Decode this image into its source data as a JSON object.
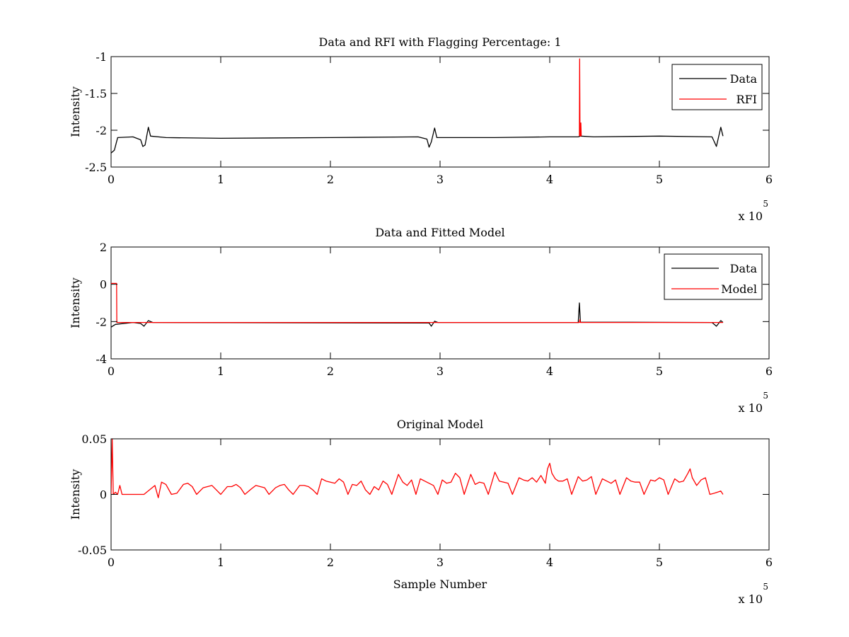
{
  "colors": {
    "data": "#000000",
    "rfi": "#ff0000",
    "background": "#ffffff"
  },
  "chart_data": [
    {
      "type": "line",
      "title": "Data and RFI with Flagging Percentage: 1",
      "xlabel": "",
      "ylabel": "Intensity",
      "xlim": [
        0,
        600000
      ],
      "ylim": [
        -2.5,
        -1
      ],
      "xticks": [
        0,
        1,
        2,
        3,
        4,
        5,
        6
      ],
      "yticks": [
        "-1",
        "-1.5",
        "-2",
        "-2.5"
      ],
      "x_exponent_label": "x 10",
      "x_exponent": "5",
      "legend": {
        "position": "top-right",
        "entries": [
          "Data",
          "RFI"
        ]
      },
      "series": [
        {
          "name": "Data",
          "color": "#000000",
          "points": [
            [
              0,
              -2.31
            ],
            [
              3000,
              -2.27
            ],
            [
              6000,
              -2.1
            ],
            [
              20000,
              -2.09
            ],
            [
              27000,
              -2.13
            ],
            [
              29000,
              -2.22
            ],
            [
              31000,
              -2.2
            ],
            [
              34000,
              -1.96
            ],
            [
              36000,
              -2.08
            ],
            [
              50000,
              -2.1
            ],
            [
              100000,
              -2.11
            ],
            [
              200000,
              -2.1
            ],
            [
              280000,
              -2.09
            ],
            [
              288000,
              -2.12
            ],
            [
              290000,
              -2.23
            ],
            [
              292000,
              -2.16
            ],
            [
              295000,
              -1.97
            ],
            [
              297000,
              -2.1
            ],
            [
              350000,
              -2.1
            ],
            [
              400000,
              -2.09
            ],
            [
              426000,
              -2.09
            ],
            [
              428000,
              -2.08
            ],
            [
              440000,
              -2.09
            ],
            [
              500000,
              -2.08
            ],
            [
              548000,
              -2.09
            ],
            [
              552000,
              -2.22
            ],
            [
              556000,
              -1.96
            ],
            [
              558000,
              -2.08
            ]
          ]
        },
        {
          "name": "RFI",
          "color": "#ff0000",
          "points": [
            [
              427000,
              -2.08
            ],
            [
              427300,
              -1.03
            ],
            [
              427600,
              -2.0
            ],
            [
              428000,
              -2.08
            ],
            [
              428400,
              -1.9
            ],
            [
              428800,
              -2.08
            ]
          ]
        }
      ]
    },
    {
      "type": "line",
      "title": "Data and Fitted Model",
      "xlabel": "",
      "ylabel": "Intensity",
      "xlim": [
        0,
        600000
      ],
      "ylim": [
        -4,
        2
      ],
      "xticks": [
        0,
        1,
        2,
        3,
        4,
        5,
        6
      ],
      "yticks": [
        "2",
        "0",
        "-2",
        "-4"
      ],
      "x_exponent_label": "x 10",
      "x_exponent": "5",
      "legend": {
        "position": "top-right",
        "entries": [
          "Data",
          "Model"
        ]
      },
      "series": [
        {
          "name": "Data",
          "color": "#000000",
          "points": [
            [
              0,
              -2.3
            ],
            [
              4000,
              -2.15
            ],
            [
              20000,
              -2.05
            ],
            [
              27000,
              -2.1
            ],
            [
              30000,
              -2.25
            ],
            [
              34000,
              -1.95
            ],
            [
              38000,
              -2.05
            ],
            [
              290000,
              -2.08
            ],
            [
              292000,
              -2.25
            ],
            [
              295000,
              -1.98
            ],
            [
              298000,
              -2.05
            ],
            [
              426000,
              -2.05
            ],
            [
              427000,
              -1.0
            ],
            [
              428000,
              -2.03
            ],
            [
              548000,
              -2.05
            ],
            [
              552000,
              -2.25
            ],
            [
              556000,
              -1.95
            ],
            [
              558000,
              -2.05
            ]
          ]
        },
        {
          "name": "Model",
          "color": "#ff0000",
          "points": [
            [
              0,
              0.05
            ],
            [
              5000,
              0.05
            ],
            [
              5200,
              -2.05
            ],
            [
              100000,
              -2.05
            ],
            [
              200000,
              -2.05
            ],
            [
              300000,
              -2.05
            ],
            [
              427000,
              -2.05
            ],
            [
              427500,
              -1.9
            ],
            [
              428000,
              -2.05
            ],
            [
              500000,
              -2.05
            ],
            [
              558000,
              -2.05
            ]
          ]
        }
      ]
    },
    {
      "type": "line",
      "title": "Original Model",
      "xlabel": "Sample Number",
      "ylabel": "Intensity",
      "xlim": [
        0,
        600000
      ],
      "ylim": [
        -0.05,
        0.05
      ],
      "xticks": [
        0,
        1,
        2,
        3,
        4,
        5,
        6
      ],
      "yticks": [
        "0.05",
        "0",
        "-0.05"
      ],
      "x_exponent_label": "x 10",
      "x_exponent": "5",
      "series": [
        {
          "name": "",
          "color": "#ff0000",
          "points": [
            [
              0,
              0
            ],
            [
              1000,
              0.05
            ],
            [
              2000,
              0
            ],
            [
              4000,
              0.002
            ],
            [
              6000,
              0
            ],
            [
              8000,
              0.008
            ],
            [
              10000,
              0
            ],
            [
              30000,
              0
            ],
            [
              40000,
              0.008
            ],
            [
              43000,
              -0.003
            ],
            [
              46000,
              0.011
            ],
            [
              50000,
              0.009
            ],
            [
              55000,
              0
            ],
            [
              60000,
              0.001
            ],
            [
              66000,
              0.009
            ],
            [
              70000,
              0.01
            ],
            [
              74000,
              0.007
            ],
            [
              78000,
              0
            ],
            [
              84000,
              0.006
            ],
            [
              88000,
              0.007
            ],
            [
              92000,
              0.008
            ],
            [
              96000,
              0.004
            ],
            [
              100000,
              0
            ],
            [
              106000,
              0.007
            ],
            [
              110000,
              0.007
            ],
            [
              114000,
              0.009
            ],
            [
              118000,
              0.006
            ],
            [
              122000,
              0
            ],
            [
              128000,
              0.005
            ],
            [
              132000,
              0.008
            ],
            [
              136000,
              0.007
            ],
            [
              140000,
              0.006
            ],
            [
              144000,
              0
            ],
            [
              150000,
              0.006
            ],
            [
              154000,
              0.008
            ],
            [
              158000,
              0.009
            ],
            [
              162000,
              0.004
            ],
            [
              166000,
              0
            ],
            [
              172000,
              0.008
            ],
            [
              176000,
              0.008
            ],
            [
              180000,
              0.007
            ],
            [
              184000,
              0.004
            ],
            [
              188000,
              0
            ],
            [
              192000,
              0.014
            ],
            [
              196000,
              0.012
            ],
            [
              200000,
              0.011
            ],
            [
              204000,
              0.01
            ],
            [
              208000,
              0.014
            ],
            [
              212000,
              0.011
            ],
            [
              216000,
              0
            ],
            [
              220000,
              0.009
            ],
            [
              224000,
              0.008
            ],
            [
              228000,
              0.012
            ],
            [
              232000,
              0.004
            ],
            [
              236000,
              0
            ],
            [
              240000,
              0.007
            ],
            [
              244000,
              0.004
            ],
            [
              248000,
              0.012
            ],
            [
              252000,
              0.009
            ],
            [
              256000,
              0
            ],
            [
              262000,
              0.018
            ],
            [
              266000,
              0.011
            ],
            [
              270000,
              0.008
            ],
            [
              274000,
              0.013
            ],
            [
              278000,
              0
            ],
            [
              282000,
              0.014
            ],
            [
              286000,
              0.012
            ],
            [
              290000,
              0.01
            ],
            [
              294000,
              0.008
            ],
            [
              298000,
              0
            ],
            [
              302000,
              0.013
            ],
            [
              306000,
              0.01
            ],
            [
              310000,
              0.011
            ],
            [
              314000,
              0.019
            ],
            [
              318000,
              0.015
            ],
            [
              322000,
              0
            ],
            [
              328000,
              0.018
            ],
            [
              332000,
              0.009
            ],
            [
              336000,
              0.011
            ],
            [
              340000,
              0.01
            ],
            [
              344000,
              0
            ],
            [
              350000,
              0.02
            ],
            [
              354000,
              0.012
            ],
            [
              358000,
              0.011
            ],
            [
              362000,
              0.01
            ],
            [
              366000,
              0
            ],
            [
              372000,
              0.015
            ],
            [
              376000,
              0.013
            ],
            [
              380000,
              0.012
            ],
            [
              384000,
              0.015
            ],
            [
              388000,
              0.011
            ],
            [
              392000,
              0.017
            ],
            [
              396000,
              0.01
            ],
            [
              398000,
              0.023
            ],
            [
              400000,
              0.028
            ],
            [
              402000,
              0.019
            ],
            [
              405000,
              0.014
            ],
            [
              408000,
              0.012
            ],
            [
              412000,
              0.012
            ],
            [
              416000,
              0.014
            ],
            [
              420000,
              0
            ],
            [
              426000,
              0.016
            ],
            [
              430000,
              0.012
            ],
            [
              434000,
              0.013
            ],
            [
              438000,
              0.016
            ],
            [
              442000,
              0
            ],
            [
              448000,
              0.014
            ],
            [
              452000,
              0.012
            ],
            [
              456000,
              0.01
            ],
            [
              460000,
              0.013
            ],
            [
              464000,
              0
            ],
            [
              470000,
              0.015
            ],
            [
              474000,
              0.012
            ],
            [
              478000,
              0.011
            ],
            [
              482000,
              0.011
            ],
            [
              486000,
              0
            ],
            [
              492000,
              0.013
            ],
            [
              496000,
              0.012
            ],
            [
              500000,
              0.015
            ],
            [
              504000,
              0.013
            ],
            [
              508000,
              0
            ],
            [
              514000,
              0.014
            ],
            [
              518000,
              0.011
            ],
            [
              522000,
              0.012
            ],
            [
              526000,
              0.019
            ],
            [
              528000,
              0.023
            ],
            [
              530000,
              0.015
            ],
            [
              534000,
              0.008
            ],
            [
              538000,
              0.013
            ],
            [
              542000,
              0.015
            ],
            [
              546000,
              0
            ],
            [
              550000,
              0.001
            ],
            [
              556000,
              0.003
            ],
            [
              558000,
              0
            ]
          ]
        }
      ]
    }
  ]
}
